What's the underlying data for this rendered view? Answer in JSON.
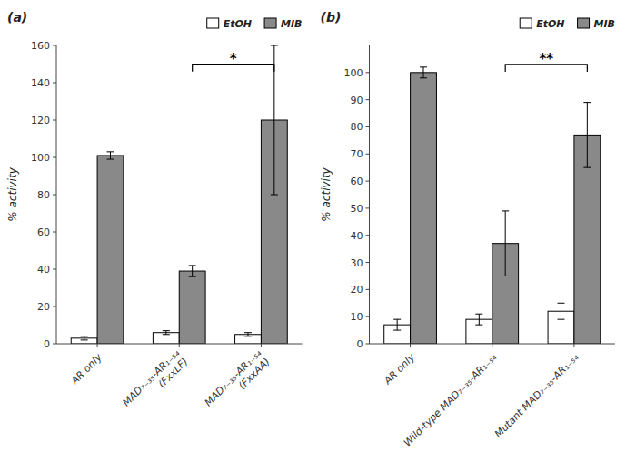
{
  "chart_data": [
    {
      "type": "bar",
      "title": "(a)",
      "categories": [
        "AR only",
        "MAD₇₋₃₅-AR₁₋₅₄\n(FxxLF)",
        "MAD₇₋₃₅-AR₁₋₅₄\n(FxxAA)"
      ],
      "series": [
        {
          "name": "EtOH",
          "color": "#ffffff",
          "values": [
            3,
            6,
            5
          ],
          "errors": [
            1,
            1,
            1
          ]
        },
        {
          "name": "MIB",
          "color": "#898989",
          "values": [
            101,
            39,
            120
          ],
          "errors": [
            2,
            3,
            40
          ]
        }
      ],
      "y_label": "% activity",
      "ylim": [
        0,
        160
      ],
      "yticks": [
        0,
        20,
        40,
        60,
        80,
        100,
        120,
        140,
        160
      ],
      "annotations": [
        {
          "text": "*",
          "y": 150,
          "categories": [
            1,
            2
          ]
        }
      ],
      "legend": "top",
      "grid": false
    },
    {
      "type": "bar",
      "title": "(b)",
      "categories": [
        "AR only",
        "Wild-type MAD₇₋₃₅-AR₁₋₅₄",
        "Mutant MAD₇₋₃₅-AR₁₋₅₄"
      ],
      "series": [
        {
          "name": "EtOH",
          "color": "#ffffff",
          "values": [
            7,
            9,
            12
          ],
          "errors": [
            2,
            2,
            3
          ]
        },
        {
          "name": "MIB",
          "color": "#898989",
          "values": [
            100,
            37,
            77
          ],
          "errors": [
            2,
            12,
            12
          ]
        }
      ],
      "y_label": "% activity",
      "ylim": [
        0,
        110
      ],
      "yticks": [
        0,
        10,
        20,
        30,
        40,
        50,
        60,
        70,
        80,
        90,
        100
      ],
      "annotations": [
        {
          "text": "**",
          "y": 103,
          "categories": [
            1,
            2
          ]
        }
      ],
      "legend": "top",
      "grid": false
    }
  ]
}
